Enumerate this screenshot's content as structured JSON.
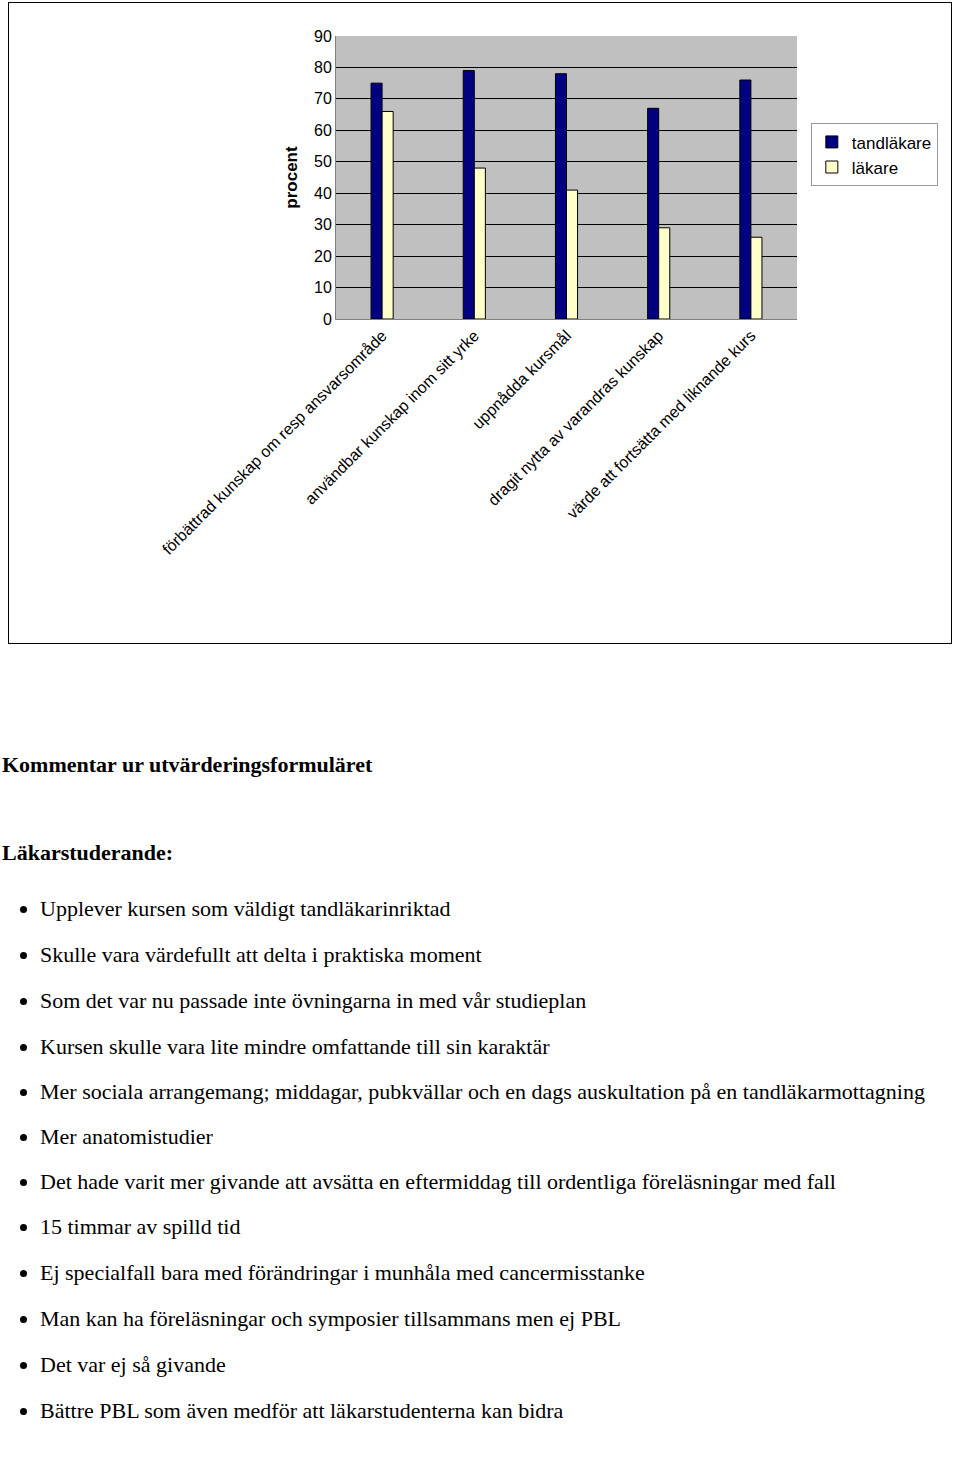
{
  "chart_data": {
    "type": "bar",
    "y_label": "procent",
    "categories": [
      "förbättrad kunskap om resp ansvarsområde",
      "användbar kunskap inom sitt yrke",
      "uppnådda kursmål",
      "dragit nytta av varandras kunskap",
      "värde att fortsätta med liknande kurs"
    ],
    "series": [
      {
        "name": "tandläkare",
        "color": "#000080",
        "values": [
          75,
          79,
          78,
          67,
          76
        ]
      },
      {
        "name": "läkare",
        "color": "#ffffcc",
        "values": [
          66,
          48,
          41,
          29,
          26
        ]
      }
    ],
    "ylim": [
      0,
      90
    ],
    "yticks": [
      0,
      10,
      20,
      30,
      40,
      50,
      60,
      70,
      80,
      90
    ],
    "grid": true,
    "legend": "right"
  },
  "document": {
    "heading": "Kommentar ur utvärderingsformuläret",
    "section": "Läkarstuderande:",
    "items": [
      "Upplever kursen som väldigt tandläkarinriktad",
      "Skulle vara värdefullt att delta i praktiska moment",
      "Som det var nu passade inte övningarna in med vår studieplan",
      "Kursen skulle vara lite mindre omfattande till sin karaktär",
      "Mer sociala arrangemang; middagar, pubkvällar och en dags auskultation på en tandläkarmottagning",
      "Mer anatomistudier",
      "Det hade varit mer givande att avsätta en eftermiddag till ordentliga föreläsningar med fall",
      "15 timmar av spilld tid",
      "Ej specialfall bara med förändringar i munhåla med cancermisstanke",
      "Man kan ha föreläsningar och symposier tillsammans men ej PBL",
      "Det var ej så givande",
      "Bättre PBL som även medför att läkarstudenterna kan bidra"
    ]
  }
}
